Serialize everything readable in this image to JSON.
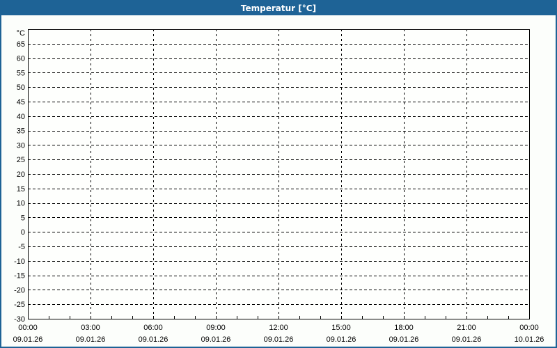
{
  "window": {
    "title": "Temperatur [°C]"
  },
  "colors": {
    "titlebar_bg": "#1e6396",
    "titlebar_text": "#ffffff",
    "window_border": "#1e6396",
    "content_bg": "#fcfefb",
    "plot_bg": "#fefffd",
    "grid": "#000000",
    "axis": "#000000",
    "label_text": "#000000"
  },
  "chart_data": {
    "type": "line",
    "title": "Temperatur [°C]",
    "y_unit_label": "°C",
    "ylim": [
      -30,
      70
    ],
    "ytick_step": 5,
    "ytick_values": [
      65,
      60,
      55,
      50,
      45,
      40,
      35,
      30,
      25,
      20,
      15,
      10,
      5,
      0,
      -5,
      -10,
      -15,
      -20,
      -25,
      -30
    ],
    "ytick_labels": [
      "65",
      "60",
      "55",
      "50",
      "45",
      "40",
      "35",
      "30",
      "25",
      "20",
      "15",
      "10",
      "5",
      "0",
      "-5",
      "-10",
      "-15",
      "-20",
      "-25",
      "-30"
    ],
    "x_span_hours": 24,
    "x_major_interval_hours": 3,
    "x_minor_interval_hours": 1,
    "xtick_labels": [
      {
        "time": "00:00",
        "date": "09.01.26"
      },
      {
        "time": "03:00",
        "date": "09.01.26"
      },
      {
        "time": "06:00",
        "date": "09.01.26"
      },
      {
        "time": "09:00",
        "date": "09.01.26"
      },
      {
        "time": "12:00",
        "date": "09.01.26"
      },
      {
        "time": "15:00",
        "date": "09.01.26"
      },
      {
        "time": "18:00",
        "date": "09.01.26"
      },
      {
        "time": "21:00",
        "date": "09.01.26"
      },
      {
        "time": "00:00",
        "date": "10.01.26"
      }
    ],
    "grid": true,
    "legend": false,
    "series": []
  }
}
